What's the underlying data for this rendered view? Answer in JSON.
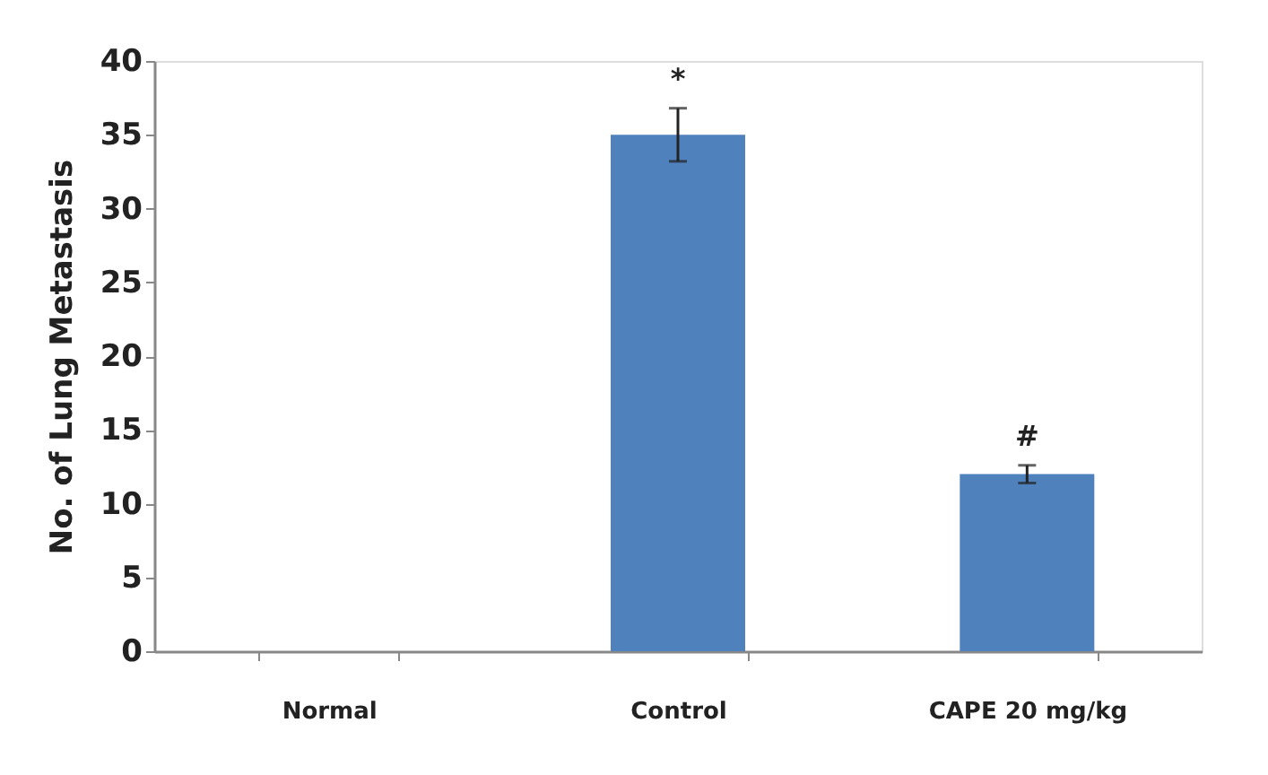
{
  "chart_data": {
    "type": "bar",
    "ylabel": "No. of Lung Metastasis",
    "categories": [
      "Normal",
      "Control",
      "CAPE 20 mg/kg"
    ],
    "values": [
      0,
      35,
      12
    ],
    "errors": [
      null,
      1.8,
      0.6
    ],
    "color": "#4f81bd",
    "ylim": [
      0,
      40
    ],
    "yticks": [
      0,
      5,
      10,
      15,
      20,
      25,
      30,
      35,
      40
    ],
    "grid": false,
    "annotations": [
      {
        "text": "*",
        "x": "Control",
        "y": 35
      },
      {
        "text": "#",
        "x": "CAPE 20 mg/kg",
        "y": 12
      }
    ]
  }
}
